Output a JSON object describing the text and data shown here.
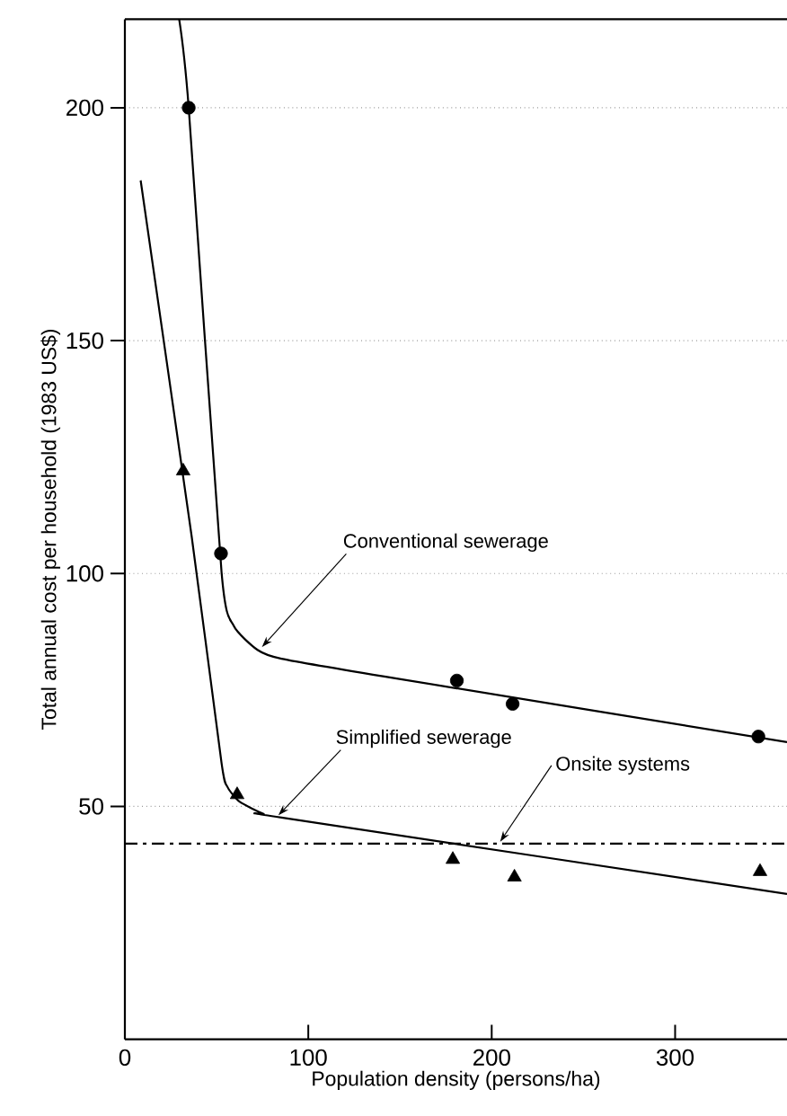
{
  "chart_data": {
    "type": "line",
    "xlabel": "Population density (persons/ha)",
    "ylabel": "Total annual cost per household (1983 US$)",
    "xlim": [
      0,
      361
    ],
    "ylim": [
      0,
      219
    ],
    "xticks": [
      0,
      100,
      200,
      300
    ],
    "yticks": [
      50,
      100,
      150,
      200
    ],
    "grid": "y",
    "series": [
      {
        "color": "#000000",
        "marker": "none",
        "x": [
          29.6,
          34.8,
          52.7,
          59.3,
          72.3,
          85.4,
          147.4,
          361
        ],
        "values": [
          219,
          200,
          100.3,
          88.8,
          83.6,
          81.7,
          77.5,
          63.8
        ]
      },
      {
        "type": "scatter",
        "color": "#000000",
        "marker": "circle",
        "x": [
          34.8,
          52.4,
          181,
          211.4,
          345.4
        ],
        "values": [
          200,
          104.3,
          77,
          72,
          65
        ]
      },
      {
        "color": "#000000",
        "marker": "none",
        "x": [
          8.6,
          36.4,
          52.7,
          55.9,
          62.5,
          75.6,
          85.4,
          361
        ],
        "values": [
          184.4,
          108,
          59.3,
          54.2,
          51,
          48.4,
          47.6,
          31.2
        ]
      },
      {
        "type": "scatter",
        "color": "#000000",
        "marker": "triangle",
        "x": [
          31.8,
          61.2,
          178.8,
          212.4,
          346.3
        ],
        "values": [
          122,
          52.5,
          38.6,
          34.8,
          36
        ]
      }
    ],
    "ref_lines": [
      {
        "axis": "y",
        "value": 42,
        "color": "#000000",
        "line_style": "dashdot"
      }
    ],
    "annotations": [
      {
        "text": "Conventional sewerage",
        "x": 74.7,
        "y": 84.2
      },
      {
        "text": "Simplified sewerage",
        "x": 83.7,
        "y": 48.1
      },
      {
        "text": "Onsite systems",
        "x": 204.6,
        "y": 42.4
      }
    ]
  }
}
